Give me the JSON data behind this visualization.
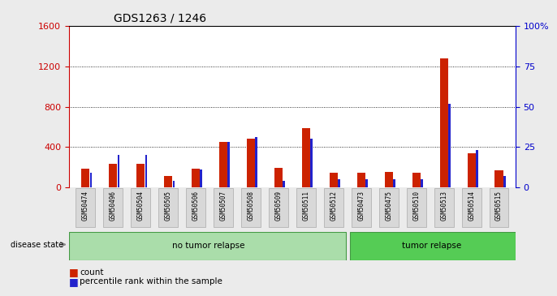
{
  "title": "GDS1263 / 1246",
  "samples": [
    "GSM50474",
    "GSM50496",
    "GSM50504",
    "GSM50505",
    "GSM50506",
    "GSM50507",
    "GSM50508",
    "GSM50509",
    "GSM50511",
    "GSM50512",
    "GSM50473",
    "GSM50475",
    "GSM50510",
    "GSM50513",
    "GSM50514",
    "GSM50515"
  ],
  "count": [
    180,
    230,
    230,
    110,
    180,
    450,
    480,
    190,
    590,
    140,
    140,
    150,
    140,
    1280,
    340,
    170
  ],
  "percentile": [
    9,
    20,
    20,
    4,
    11,
    28,
    31,
    4,
    30,
    5,
    5,
    5,
    5,
    52,
    23,
    7
  ],
  "no_tumor_count": 10,
  "tumor_count": 6,
  "bar_color_red": "#CC2200",
  "bar_color_blue": "#2222CC",
  "left_axis_color": "#CC0000",
  "right_axis_color": "#0000CC",
  "ylim_left": [
    0,
    1600
  ],
  "ylim_right": [
    0,
    100
  ],
  "yticks_left": [
    0,
    400,
    800,
    1200,
    1600
  ],
  "yticks_right": [
    0,
    25,
    50,
    75,
    100
  ],
  "ytick_labels_right": [
    "0",
    "25",
    "50",
    "75",
    "100%"
  ],
  "bg_color": "#EBEBEB",
  "plot_bg": "#FFFFFF",
  "grid_color": "#000000",
  "group_label_1": "no tumor relapse",
  "group_label_2": "tumor relapse",
  "group_color_light": "#AADDAA",
  "group_color_dark": "#55CC55",
  "disease_state_label": "disease state",
  "legend_count": "count",
  "legend_pct": "percentile rank within the sample"
}
